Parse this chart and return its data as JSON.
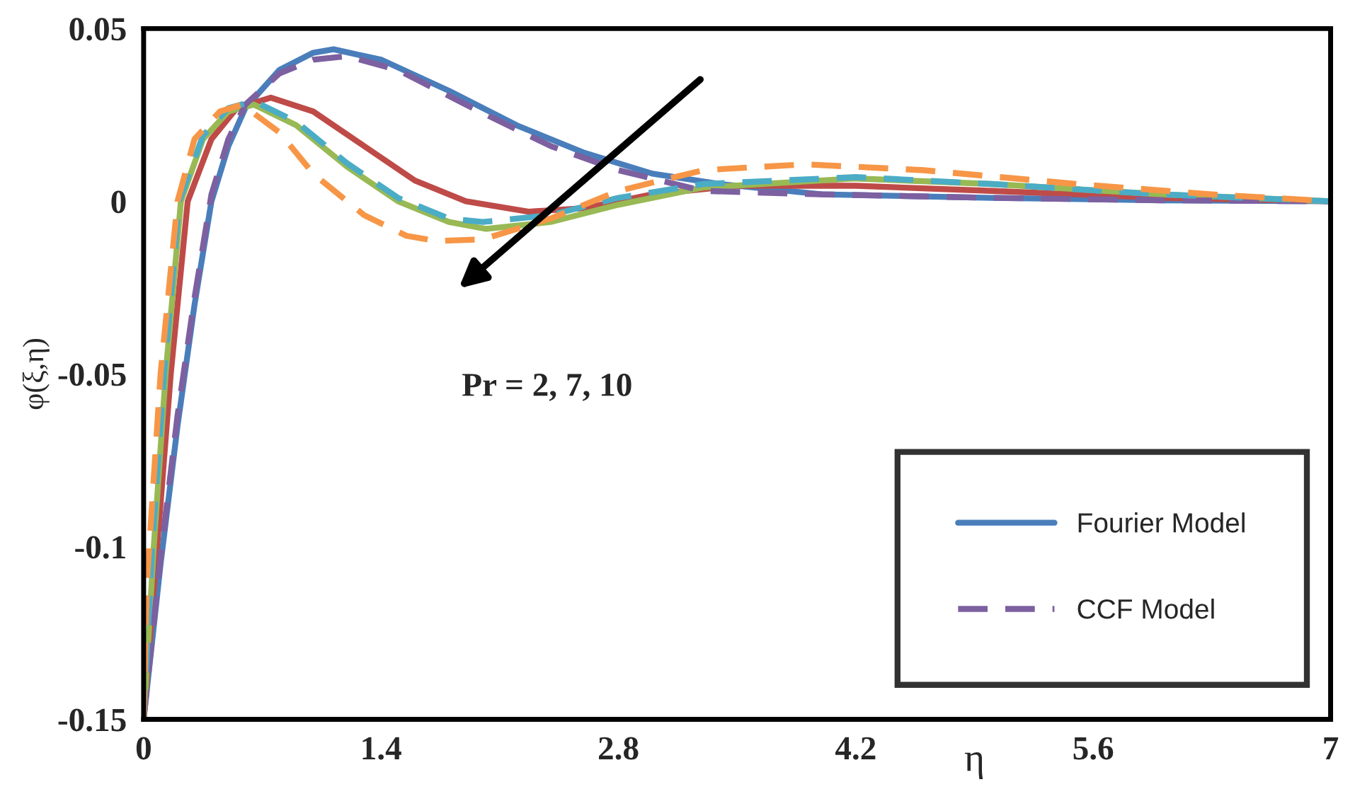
{
  "chart_data": {
    "type": "line",
    "xlabel": "η",
    "ylabel": "φ(ξ,η)",
    "xlim": [
      0,
      7
    ],
    "xticks": [
      0,
      1.4,
      2.8,
      4.2,
      5.6,
      7
    ],
    "ylim": [
      -0.15,
      0.05
    ],
    "yticks": [
      {
        "value": -0.15,
        "label": "-0.15"
      },
      {
        "value": -0.1,
        "label": "-0.1"
      },
      {
        "value": -0.05,
        "label": "-0.05"
      },
      0,
      {
        "value": 0.05,
        "label": "0.05"
      }
    ],
    "grid": false,
    "legend": "bottom right",
    "annotations": [
      "Pr = 2, 7, 10"
    ],
    "series": [
      {
        "name": "Fourier Model",
        "color": "#4a7ebb",
        "line_style": "solid",
        "x": [
          0,
          0.1,
          0.2,
          0.3,
          0.4,
          0.5,
          0.6,
          0.8,
          1.0,
          1.12,
          1.4,
          1.8,
          2.2,
          2.6,
          3.0,
          3.4,
          4.0,
          5.0,
          6.0,
          7.0
        ],
        "values": [
          -0.15,
          -0.105,
          -0.065,
          -0.03,
          0,
          0.016,
          0.027,
          0.038,
          0.043,
          0.044,
          0.041,
          0.032,
          0.022,
          0.014,
          0.008,
          0.005,
          0.002,
          0.001,
          0.0003,
          0
        ]
      },
      {
        "color": "#be4b48",
        "line_style": "solid",
        "x": [
          0,
          0.08,
          0.16,
          0.26,
          0.4,
          0.55,
          0.75,
          1.0,
          1.3,
          1.6,
          1.9,
          2.27,
          2.6,
          3.0,
          3.5,
          4.2,
          5.0,
          6.0,
          7.0
        ],
        "values": [
          -0.15,
          -0.1,
          -0.05,
          0,
          0.018,
          0.027,
          0.03,
          0.026,
          0.016,
          0.006,
          0.0,
          -0.003,
          -0.002,
          0.002,
          0.0045,
          0.0045,
          0.003,
          0.001,
          0
        ]
      },
      {
        "color": "#98b954",
        "line_style": "solid",
        "x": [
          0,
          0.06,
          0.13,
          0.22,
          0.35,
          0.5,
          0.65,
          0.9,
          1.2,
          1.5,
          1.8,
          2.02,
          2.4,
          2.8,
          3.3,
          4.2,
          5.0,
          6.0,
          7.0
        ],
        "values": [
          -0.15,
          -0.1,
          -0.05,
          0,
          0.018,
          0.026,
          0.028,
          0.022,
          0.01,
          0.0,
          -0.006,
          -0.008,
          -0.006,
          -0.001,
          0.004,
          0.0066,
          0.005,
          0.002,
          0
        ]
      },
      {
        "name": "CCF Model",
        "color": "#7d60a0",
        "line_style": "dashed",
        "x": [
          0,
          0.1,
          0.2,
          0.3,
          0.4,
          0.5,
          0.6,
          0.8,
          1.0,
          1.2,
          1.5,
          1.9,
          2.4,
          2.8,
          3.3,
          4.0,
          5.0,
          6.0,
          7.0
        ],
        "values": [
          -0.15,
          -0.103,
          -0.062,
          -0.028,
          0.002,
          0.018,
          0.028,
          0.037,
          0.041,
          0.042,
          0.038,
          0.028,
          0.016,
          0.009,
          0.003,
          0.002,
          0.001,
          0.0003,
          0
        ]
      },
      {
        "color": "#4bacc6",
        "line_style": "dashed",
        "x": [
          0,
          0.05,
          0.12,
          0.21,
          0.35,
          0.5,
          0.65,
          0.9,
          1.2,
          1.5,
          1.8,
          2.0,
          2.4,
          2.8,
          3.3,
          4.2,
          5.0,
          6.0,
          7.0
        ],
        "values": [
          -0.15,
          -0.1,
          -0.05,
          0,
          0.019,
          0.027,
          0.029,
          0.023,
          0.011,
          0.001,
          -0.005,
          -0.006,
          -0.004,
          0.001,
          0.005,
          0.007,
          0.005,
          0.002,
          0
        ]
      },
      {
        "color": "#f79646",
        "line_style": "dashed",
        "x": [
          0,
          0.02,
          0.1,
          0.2,
          0.3,
          0.45,
          0.58,
          0.8,
          1.0,
          1.3,
          1.55,
          1.73,
          2.0,
          2.4,
          2.8,
          3.3,
          3.9,
          4.6,
          5.5,
          6.3,
          7.0
        ],
        "values": [
          -0.15,
          -0.11,
          -0.05,
          0,
          0.018,
          0.026,
          0.028,
          0.02,
          0.008,
          -0.004,
          -0.01,
          -0.0115,
          -0.011,
          -0.005,
          0.003,
          0.009,
          0.0107,
          0.009,
          0.005,
          0.002,
          0
        ]
      }
    ]
  }
}
